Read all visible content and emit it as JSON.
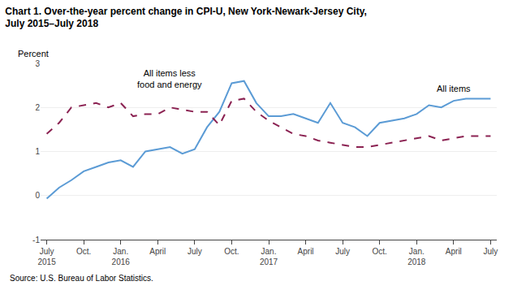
{
  "chart_data": {
    "type": "line",
    "title": "Chart 1. Over-the-year percent change in CPI-U, New York-Newark-Jersey City,\nJuly 2015–July 2018",
    "ylabel": "Percent",
    "source": "Source: U.S. Bureau of Labor Statistics.",
    "categories": [
      "July\n2015",
      null,
      null,
      "Oct.",
      null,
      null,
      "Jan.\n2016",
      null,
      null,
      "April",
      null,
      null,
      "July",
      null,
      null,
      "Oct.",
      null,
      null,
      "Jan.\n2017",
      null,
      null,
      "April",
      null,
      null,
      "July",
      null,
      null,
      "Oct.",
      null,
      null,
      "Jan.\n2018",
      null,
      null,
      "April",
      null,
      null,
      "July"
    ],
    "series": [
      {
        "name": "All items",
        "color": "#5b9bd5",
        "line_style": "solid",
        "values": [
          -0.07,
          0.18,
          0.35,
          0.55,
          0.65,
          0.75,
          0.8,
          0.65,
          1.0,
          1.05,
          1.1,
          0.95,
          1.05,
          1.55,
          1.9,
          2.55,
          2.6,
          2.1,
          1.8,
          1.8,
          1.85,
          1.75,
          1.65,
          2.1,
          1.65,
          1.55,
          1.35,
          1.65,
          1.7,
          1.75,
          1.85,
          2.05,
          2.0,
          2.15,
          2.2,
          2.2,
          2.2
        ]
      },
      {
        "name": "All items less food and energy",
        "color": "#8b2252",
        "line_style": "dashed",
        "values": [
          1.4,
          1.65,
          2.0,
          2.05,
          2.1,
          2.0,
          2.1,
          1.8,
          1.85,
          1.85,
          2.0,
          1.95,
          1.9,
          1.9,
          1.6,
          2.15,
          2.2,
          1.9,
          1.7,
          1.55,
          1.4,
          1.35,
          1.25,
          1.2,
          1.15,
          1.1,
          1.1,
          1.15,
          1.2,
          1.25,
          1.3,
          1.35,
          1.25,
          1.3,
          1.35,
          1.35,
          1.35
        ]
      }
    ],
    "annotations": [
      {
        "text": "All items less\nfood and energy",
        "x": 10,
        "y": 2.38
      },
      {
        "text": "All items",
        "x": 31.5,
        "y": 2.28
      }
    ],
    "ylim": [
      -1,
      3
    ],
    "yticks": [
      -1,
      0,
      1,
      2,
      3
    ],
    "grid": true
  }
}
